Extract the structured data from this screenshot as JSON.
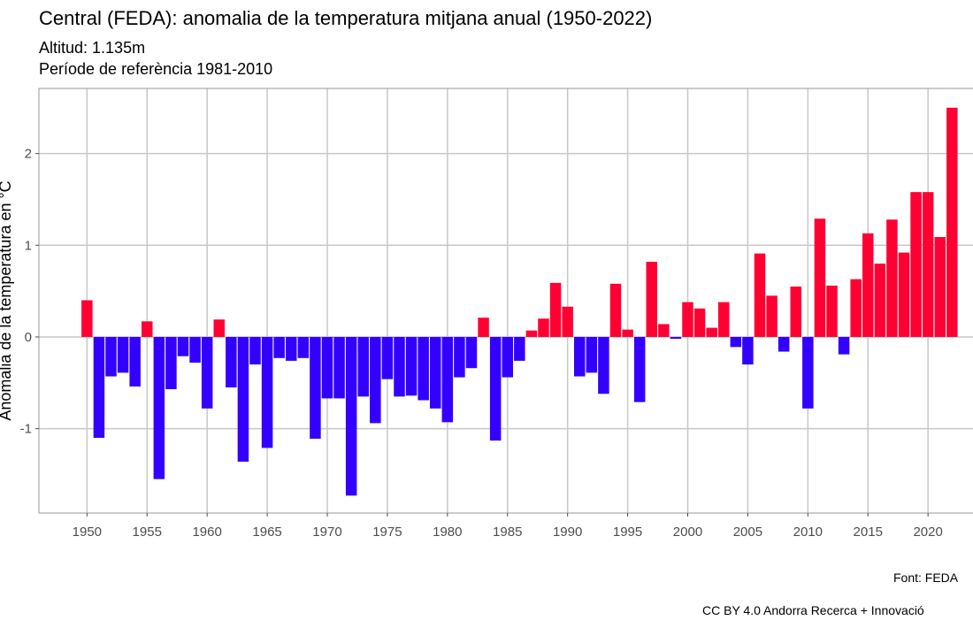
{
  "chart_data": {
    "type": "bar",
    "title": "Central (FEDA): anomalia de la temperatura mitjana anual (1950-2022)",
    "subtitle_lines": [
      "Altitud: 1.135m",
      "Període de referència 1981-2010"
    ],
    "xlabel": "",
    "ylabel": "Anomalia de la temperatura en °C",
    "caption_lines": [
      "Font: FEDA",
      "CC BY 4.0 Andorra Recerca + Innovació"
    ],
    "x_ticks": [
      "1950",
      "1955",
      "1960",
      "1965",
      "1970",
      "1975",
      "1980",
      "1985",
      "1990",
      "1995",
      "2000",
      "2005",
      "2010",
      "2015",
      "2020"
    ],
    "y_ticks": [
      "2",
      "1",
      "0",
      "-1"
    ],
    "ylim": [
      -1.92,
      2.71
    ],
    "xlim": [
      1946,
      2025.5
    ],
    "grid": true,
    "colors": {
      "positive": "#FF0033",
      "negative": "#3300FF",
      "grid": "#c8c8c8"
    },
    "x": [
      1950,
      1951,
      1952,
      1953,
      1954,
      1955,
      1956,
      1957,
      1958,
      1959,
      1960,
      1961,
      1962,
      1963,
      1964,
      1965,
      1966,
      1967,
      1968,
      1969,
      1970,
      1971,
      1972,
      1973,
      1974,
      1975,
      1976,
      1977,
      1978,
      1979,
      1980,
      1981,
      1982,
      1983,
      1984,
      1985,
      1986,
      1987,
      1988,
      1989,
      1990,
      1991,
      1992,
      1993,
      1994,
      1995,
      1996,
      1997,
      1998,
      1999,
      2000,
      2001,
      2002,
      2003,
      2004,
      2005,
      2006,
      2007,
      2008,
      2009,
      2010,
      2011,
      2012,
      2013,
      2014,
      2015,
      2016,
      2017,
      2018,
      2019,
      2020,
      2021,
      2022
    ],
    "values": [
      0.4,
      -1.1,
      -0.43,
      -0.39,
      -0.54,
      0.17,
      -1.55,
      -0.57,
      -0.21,
      -0.28,
      -0.78,
      0.19,
      -0.55,
      -1.36,
      -0.3,
      -1.21,
      -0.23,
      -0.26,
      -0.23,
      -1.11,
      -0.67,
      -0.67,
      -1.73,
      -0.65,
      -0.94,
      -0.46,
      -0.65,
      -0.64,
      -0.69,
      -0.78,
      -0.93,
      -0.44,
      -0.34,
      0.21,
      -1.13,
      -0.44,
      -0.26,
      0.07,
      0.2,
      0.59,
      0.33,
      -0.43,
      -0.39,
      -0.62,
      0.58,
      0.08,
      -0.71,
      0.82,
      0.14,
      -0.02,
      0.38,
      0.31,
      0.1,
      0.38,
      -0.11,
      -0.3,
      0.91,
      0.45,
      -0.16,
      0.55,
      -0.78,
      1.29,
      0.56,
      -0.19,
      0.63,
      1.13,
      0.8,
      1.28,
      0.92,
      1.58,
      1.58,
      1.09,
      2.5
    ]
  }
}
